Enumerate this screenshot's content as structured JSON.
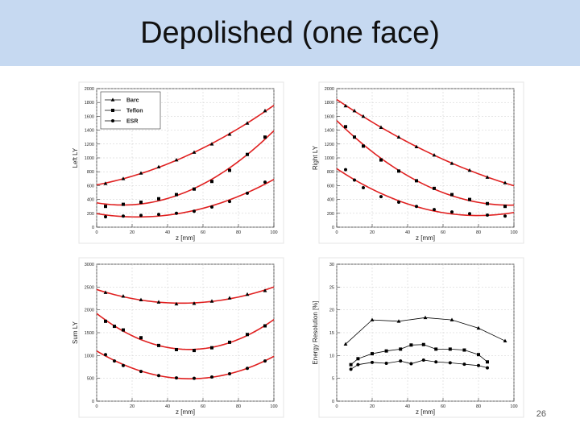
{
  "slide": {
    "title": "Depolished (one face)",
    "page_number": "26"
  },
  "colors": {
    "title_bar": "#c6d9f1",
    "fit_line": "#e02020",
    "data_line": "#000000",
    "grid": "#cccccc"
  },
  "chart_data": [
    {
      "type": "line",
      "title": "",
      "xlabel": "z [mm]",
      "ylabel": "Left LY",
      "xlim": [
        0,
        100
      ],
      "ylim": [
        0,
        2000
      ],
      "xticks": [
        0,
        20,
        40,
        60,
        80,
        100
      ],
      "yticks": [
        0,
        200,
        400,
        600,
        800,
        1000,
        1200,
        1400,
        1600,
        1800,
        2000
      ],
      "grid": true,
      "legend": "top-left",
      "fit": true,
      "series": [
        {
          "name": "Barc",
          "marker": "triangle",
          "x": [
            5,
            15,
            25,
            35,
            45,
            55,
            65,
            75,
            85,
            95
          ],
          "y": [
            630,
            700,
            780,
            870,
            970,
            1080,
            1200,
            1340,
            1500,
            1680
          ]
        },
        {
          "name": "Teflon",
          "marker": "square",
          "x": [
            5,
            15,
            25,
            35,
            45,
            55,
            65,
            75,
            85,
            95
          ],
          "y": [
            300,
            330,
            360,
            410,
            470,
            550,
            660,
            820,
            1050,
            1300
          ]
        },
        {
          "name": "ESR",
          "marker": "circle",
          "x": [
            5,
            15,
            25,
            35,
            45,
            55,
            65,
            75,
            85,
            95
          ],
          "y": [
            150,
            160,
            170,
            185,
            200,
            230,
            290,
            370,
            490,
            650
          ]
        }
      ]
    },
    {
      "type": "line",
      "title": "",
      "xlabel": "z [mm]",
      "ylabel": "Right LY",
      "xlim": [
        0,
        100
      ],
      "ylim": [
        0,
        2000
      ],
      "xticks": [
        0,
        20,
        40,
        60,
        80,
        100
      ],
      "yticks": [
        0,
        200,
        400,
        600,
        800,
        1000,
        1200,
        1400,
        1600,
        1800,
        2000
      ],
      "grid": true,
      "fit": true,
      "series": [
        {
          "name": "Barc",
          "marker": "triangle",
          "x": [
            5,
            10,
            15,
            25,
            35,
            45,
            55,
            65,
            75,
            85,
            95
          ],
          "y": [
            1750,
            1680,
            1600,
            1440,
            1300,
            1160,
            1040,
            920,
            820,
            720,
            640
          ]
        },
        {
          "name": "Teflon",
          "marker": "square",
          "x": [
            5,
            10,
            15,
            25,
            35,
            45,
            55,
            65,
            75,
            85,
            95
          ],
          "y": [
            1450,
            1300,
            1170,
            970,
            810,
            670,
            560,
            470,
            400,
            340,
            300
          ]
        },
        {
          "name": "ESR",
          "marker": "circle",
          "x": [
            5,
            10,
            15,
            25,
            35,
            45,
            55,
            65,
            75,
            85,
            95
          ],
          "y": [
            830,
            680,
            570,
            440,
            360,
            300,
            255,
            220,
            195,
            175,
            160
          ]
        }
      ]
    },
    {
      "type": "line",
      "title": "",
      "xlabel": "z [mm]",
      "ylabel": "Sum LY",
      "xlim": [
        0,
        100
      ],
      "ylim": [
        0,
        3000
      ],
      "xticks": [
        0,
        20,
        40,
        60,
        80,
        100
      ],
      "yticks": [
        0,
        500,
        1000,
        1500,
        2000,
        2500,
        3000
      ],
      "grid": true,
      "fit": true,
      "series": [
        {
          "name": "Barc",
          "marker": "triangle",
          "x": [
            5,
            15,
            25,
            35,
            45,
            55,
            65,
            75,
            85,
            95
          ],
          "y": [
            2380,
            2300,
            2220,
            2170,
            2130,
            2140,
            2190,
            2260,
            2340,
            2420
          ]
        },
        {
          "name": "Teflon",
          "marker": "square",
          "x": [
            5,
            10,
            15,
            25,
            35,
            45,
            55,
            65,
            75,
            85,
            95
          ],
          "y": [
            1750,
            1640,
            1560,
            1390,
            1220,
            1130,
            1110,
            1170,
            1290,
            1460,
            1650
          ]
        },
        {
          "name": "ESR",
          "marker": "circle",
          "x": [
            5,
            10,
            15,
            25,
            35,
            45,
            55,
            65,
            75,
            85,
            95
          ],
          "y": [
            1020,
            880,
            780,
            650,
            560,
            510,
            500,
            530,
            600,
            720,
            880
          ]
        }
      ]
    },
    {
      "type": "line",
      "title": "",
      "xlabel": "z [mm]",
      "ylabel": "Energy Resolution [%]",
      "xlim": [
        0,
        100
      ],
      "ylim": [
        0,
        30
      ],
      "xticks": [
        0,
        20,
        40,
        60,
        80,
        100
      ],
      "yticks": [
        0,
        5,
        10,
        15,
        20,
        25,
        30
      ],
      "grid": true,
      "fit": false,
      "series": [
        {
          "name": "Barc",
          "marker": "triangle",
          "x": [
            5,
            20,
            35,
            50,
            65,
            80,
            95
          ],
          "y": [
            12.5,
            17.8,
            17.5,
            18.3,
            17.8,
            16.0,
            13.2
          ]
        },
        {
          "name": "Teflon",
          "marker": "square",
          "x": [
            8,
            12,
            20,
            28,
            36,
            42,
            49,
            56,
            64,
            72,
            80,
            85
          ],
          "y": [
            8.0,
            9.3,
            10.4,
            11.0,
            11.4,
            12.3,
            12.4,
            11.4,
            11.4,
            11.2,
            10.2,
            8.6
          ]
        },
        {
          "name": "ESR",
          "marker": "circle",
          "x": [
            8,
            12,
            20,
            28,
            36,
            42,
            49,
            56,
            64,
            72,
            80,
            85
          ],
          "y": [
            7.0,
            8.0,
            8.5,
            8.3,
            8.8,
            8.2,
            9.0,
            8.6,
            8.4,
            8.1,
            7.8,
            7.3
          ]
        }
      ]
    }
  ]
}
